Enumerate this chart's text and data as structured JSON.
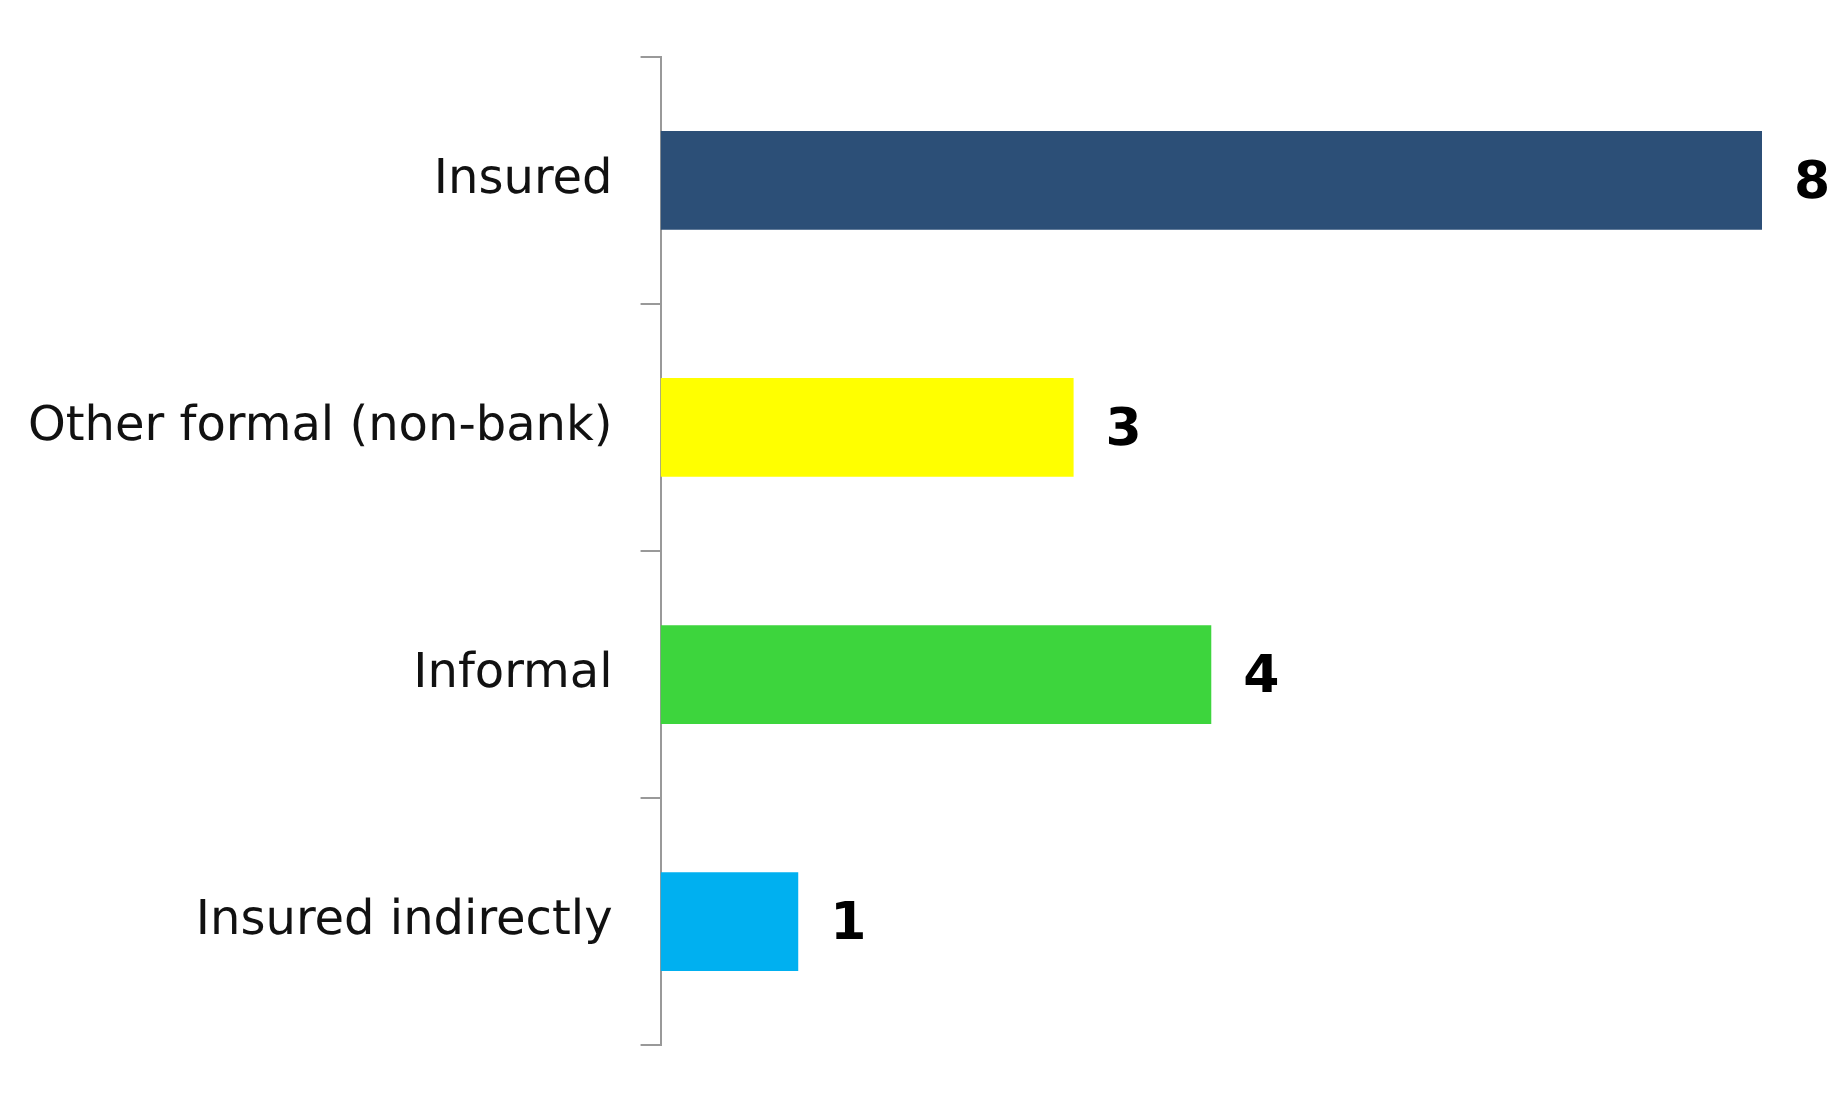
{
  "chart_data": {
    "type": "bar",
    "orientation": "horizontal",
    "categories": [
      "Insured",
      "Other formal (non-bank)",
      "Informal",
      "Insured indirectly"
    ],
    "values": [
      8,
      3,
      4,
      1
    ],
    "colors": [
      "#2c4f77",
      "#ffff00",
      "#3dd53d",
      "#00b0f0"
    ],
    "data_labels": true,
    "legend": false
  }
}
